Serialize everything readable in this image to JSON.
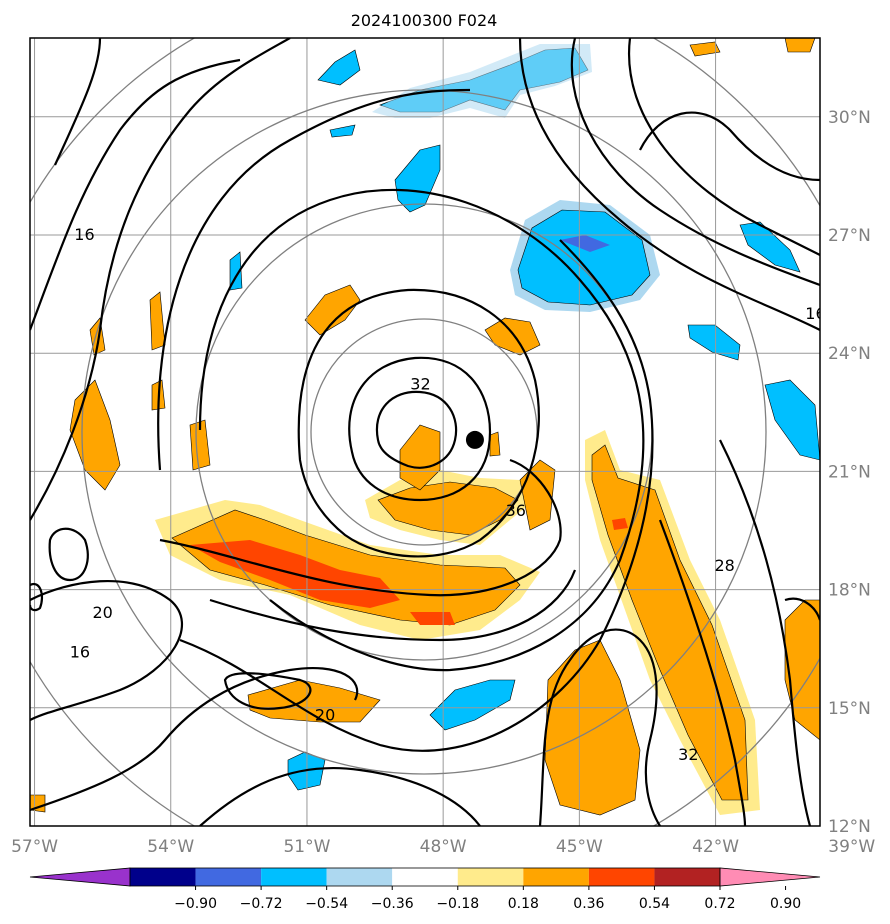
{
  "title": "2024100300 F024",
  "colors": {
    "frame": "#000000",
    "grid": "#999999",
    "ring": "#808080",
    "contour": "#000000",
    "center_marker": "#000000"
  },
  "map": {
    "lon_range": [
      -57.1,
      -39.7
    ],
    "lat_range": [
      12.0,
      32.0
    ],
    "lat_ticks": [
      {
        "value": 30,
        "label": "30°N"
      },
      {
        "value": 27,
        "label": "27°N"
      },
      {
        "value": 24,
        "label": "24°N"
      },
      {
        "value": 21,
        "label": "21°N"
      },
      {
        "value": 18,
        "label": "18°N"
      },
      {
        "value": 15,
        "label": "15°N"
      },
      {
        "value": 12,
        "label": "12°N"
      }
    ],
    "lon_ticks": [
      {
        "value": -57,
        "label": "57°W"
      },
      {
        "value": -54,
        "label": "54°W"
      },
      {
        "value": -51,
        "label": "51°W"
      },
      {
        "value": -48,
        "label": "48°W"
      },
      {
        "value": -45,
        "label": "45°W"
      },
      {
        "value": -42,
        "label": "42°W"
      },
      {
        "value": -39,
        "label": "39°W"
      }
    ],
    "center": {
      "lon": -47.3,
      "lat": 21.8
    },
    "contour_labels": [
      {
        "text": "16",
        "lon": -55.9,
        "lat": 27.0
      },
      {
        "text": "16",
        "lon": -39.8,
        "lat": 25.0
      },
      {
        "text": "32",
        "lon": -48.5,
        "lat": 23.2
      },
      {
        "text": "36",
        "lon": -46.4,
        "lat": 20.0
      },
      {
        "text": "20",
        "lon": -55.5,
        "lat": 17.4
      },
      {
        "text": "16",
        "lon": -56.0,
        "lat": 16.4
      },
      {
        "text": "28",
        "lon": -41.8,
        "lat": 18.6
      },
      {
        "text": "20",
        "lon": -50.6,
        "lat": 14.8
      },
      {
        "text": "32",
        "lon": -42.6,
        "lat": 13.8
      }
    ]
  },
  "colorbar": {
    "ticks": [
      "−0.90",
      "−0.72",
      "−0.54",
      "−0.36",
      "−0.18",
      "0.18",
      "0.36",
      "0.54",
      "0.72",
      "0.90"
    ],
    "colors": [
      "#9932cc",
      "#00008b",
      "#4169e1",
      "#00bfff",
      "#add8f0",
      "#ffffff",
      "#ffeb8c",
      "#ffa500",
      "#ff4500",
      "#b22222",
      "#ff8cb4"
    ]
  }
}
